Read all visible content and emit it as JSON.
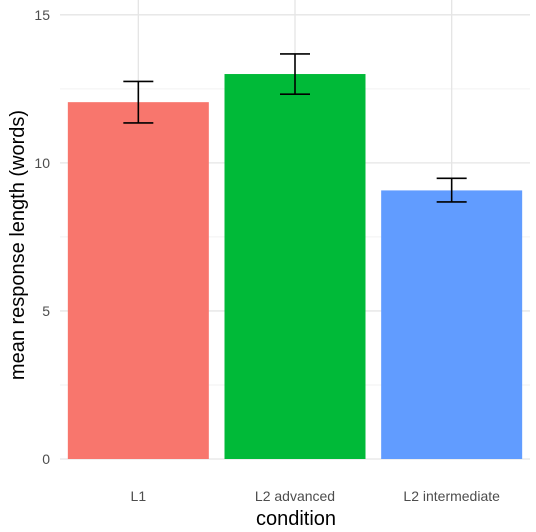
{
  "chart_data": {
    "type": "bar",
    "xlabel": "condition",
    "ylabel": "mean response length (words)",
    "categories": [
      "L1",
      "L2 advanced",
      "L2 intermediate"
    ],
    "values": [
      12.05,
      13.0,
      9.07
    ],
    "error_bars": [
      {
        "low": 11.35,
        "high": 12.75
      },
      {
        "low": 12.32,
        "high": 13.68
      },
      {
        "low": 8.68,
        "high": 9.48
      }
    ],
    "colors": [
      "#F8766D",
      "#00BA38",
      "#619CFF"
    ],
    "ylim": [
      0,
      15.5
    ],
    "y_ticks": [
      0,
      5,
      10,
      15
    ],
    "y_tick_labels": [
      "0",
      "5",
      "10",
      "15"
    ],
    "grid": true
  }
}
